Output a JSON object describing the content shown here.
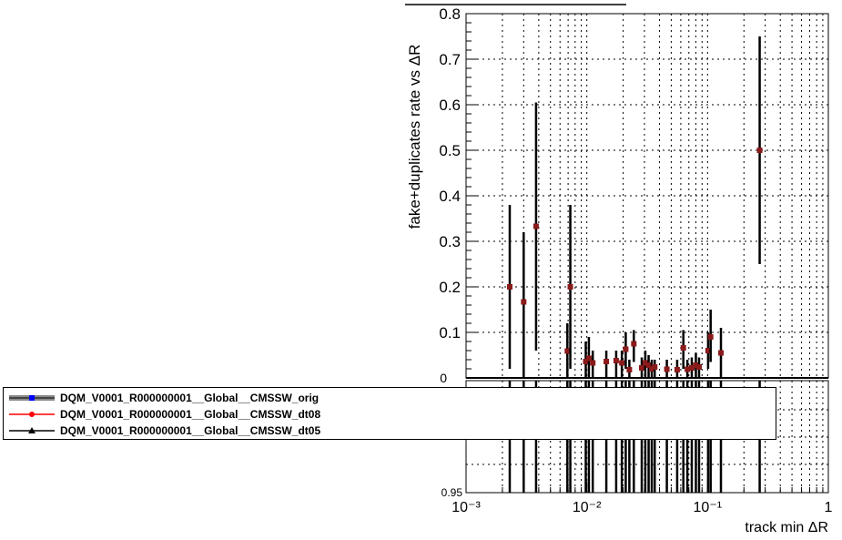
{
  "chart_data": [
    {
      "type": "scatter",
      "title": "",
      "xlabel": "track min ΔR",
      "ylabel": "fake+duplicates rate vs ΔR",
      "x_scale": "log",
      "xlim": [
        0.001,
        1
      ],
      "ylim": [
        0,
        0.8
      ],
      "grid": true,
      "x_tick_labels": [
        "10⁻³",
        "10⁻²",
        "10⁻¹",
        "1"
      ],
      "y_tick_labels": [
        "0",
        "0.1",
        "0.2",
        "0.3",
        "0.4",
        "0.5",
        "0.6",
        "0.7",
        "0.8"
      ],
      "series": [
        {
          "name": "DQM_V0001_R000000001__Global__CMSSW_orig",
          "color": "#0000ff",
          "marker": "square",
          "points": [
            {
              "x": 0.0023,
              "y": 0.2,
              "ylo": 0.02,
              "yhi": 0.38
            },
            {
              "x": 0.003,
              "y": 0.167,
              "ylo": 0.0,
              "yhi": 0.32
            },
            {
              "x": 0.0038,
              "y": 0.333,
              "ylo": 0.06,
              "yhi": 0.605
            },
            {
              "x": 0.0069,
              "y": 0.059,
              "ylo": 0.0,
              "yhi": 0.12
            },
            {
              "x": 0.0073,
              "y": 0.2,
              "ylo": 0.02,
              "yhi": 0.38
            },
            {
              "x": 0.0098,
              "y": 0.036,
              "ylo": 0.0,
              "yhi": 0.08
            },
            {
              "x": 0.0104,
              "y": 0.043,
              "ylo": 0.0,
              "yhi": 0.09
            },
            {
              "x": 0.0112,
              "y": 0.033,
              "ylo": 0.0,
              "yhi": 0.06
            },
            {
              "x": 0.0145,
              "y": 0.036,
              "ylo": 0.0,
              "yhi": 0.06
            },
            {
              "x": 0.0175,
              "y": 0.038,
              "ylo": 0.0,
              "yhi": 0.06
            },
            {
              "x": 0.0195,
              "y": 0.033,
              "ylo": 0.0,
              "yhi": 0.06
            },
            {
              "x": 0.021,
              "y": 0.063,
              "ylo": 0.02,
              "yhi": 0.1
            },
            {
              "x": 0.0225,
              "y": 0.018,
              "ylo": 0.0,
              "yhi": 0.04
            },
            {
              "x": 0.0245,
              "y": 0.075,
              "ylo": 0.035,
              "yhi": 0.105
            },
            {
              "x": 0.0285,
              "y": 0.022,
              "ylo": 0.0,
              "yhi": 0.045
            },
            {
              "x": 0.0305,
              "y": 0.033,
              "ylo": 0.0,
              "yhi": 0.06
            },
            {
              "x": 0.0325,
              "y": 0.028,
              "ylo": 0.0,
              "yhi": 0.05
            },
            {
              "x": 0.0345,
              "y": 0.02,
              "ylo": 0.0,
              "yhi": 0.04
            },
            {
              "x": 0.0365,
              "y": 0.024,
              "ylo": 0.0,
              "yhi": 0.04
            },
            {
              "x": 0.046,
              "y": 0.019,
              "ylo": 0.0,
              "yhi": 0.04
            },
            {
              "x": 0.056,
              "y": 0.018,
              "ylo": 0.0,
              "yhi": 0.04
            },
            {
              "x": 0.063,
              "y": 0.066,
              "ylo": 0.02,
              "yhi": 0.105
            },
            {
              "x": 0.068,
              "y": 0.019,
              "ylo": 0.0,
              "yhi": 0.04
            },
            {
              "x": 0.074,
              "y": 0.022,
              "ylo": 0.0,
              "yhi": 0.045
            },
            {
              "x": 0.08,
              "y": 0.028,
              "ylo": 0.0,
              "yhi": 0.055
            },
            {
              "x": 0.085,
              "y": 0.024,
              "ylo": 0.0,
              "yhi": 0.045
            },
            {
              "x": 0.101,
              "y": 0.06,
              "ylo": 0.02,
              "yhi": 0.1
            },
            {
              "x": 0.106,
              "y": 0.09,
              "ylo": 0.035,
              "yhi": 0.15
            },
            {
              "x": 0.129,
              "y": 0.055,
              "ylo": 0.0,
              "yhi": 0.11
            },
            {
              "x": 0.27,
              "y": 0.5,
              "ylo": 0.25,
              "yhi": 0.75
            }
          ]
        },
        {
          "name": "DQM_V0001_R000000001__Global__CMSSW_dt08",
          "color": "#ff0000",
          "marker": "circle",
          "points": []
        },
        {
          "name": "DQM_V0001_R000000001__Global__CMSSW_dt05",
          "color": "#000000",
          "marker": "triangle",
          "points": []
        }
      ]
    },
    {
      "type": "scatter",
      "title": "",
      "xlabel": "track min ΔR",
      "ylabel": "",
      "x_scale": "log",
      "xlim": [
        0.001,
        1
      ],
      "y_tick_labels_visible": [
        "0.95"
      ],
      "grid": true,
      "note_tick_fragment": "0"
    }
  ],
  "legend": {
    "items": [
      {
        "label": "DQM_V0001_R000000001__Global__CMSSW_orig",
        "color": "#0000ff",
        "marker": "square"
      },
      {
        "label": "DQM_V0001_R000000001__Global__CMSSW_dt08",
        "color": "#ff0000",
        "marker": "circle"
      },
      {
        "label": "DQM_V0001_R000000001__Global__CMSSW_dt05",
        "color": "#000000",
        "marker": "triangle"
      }
    ]
  },
  "colors": {
    "marker_fill": "#8b1a1a",
    "error_bar": "#000000",
    "grid": "#000000",
    "background": "#ffffff"
  }
}
